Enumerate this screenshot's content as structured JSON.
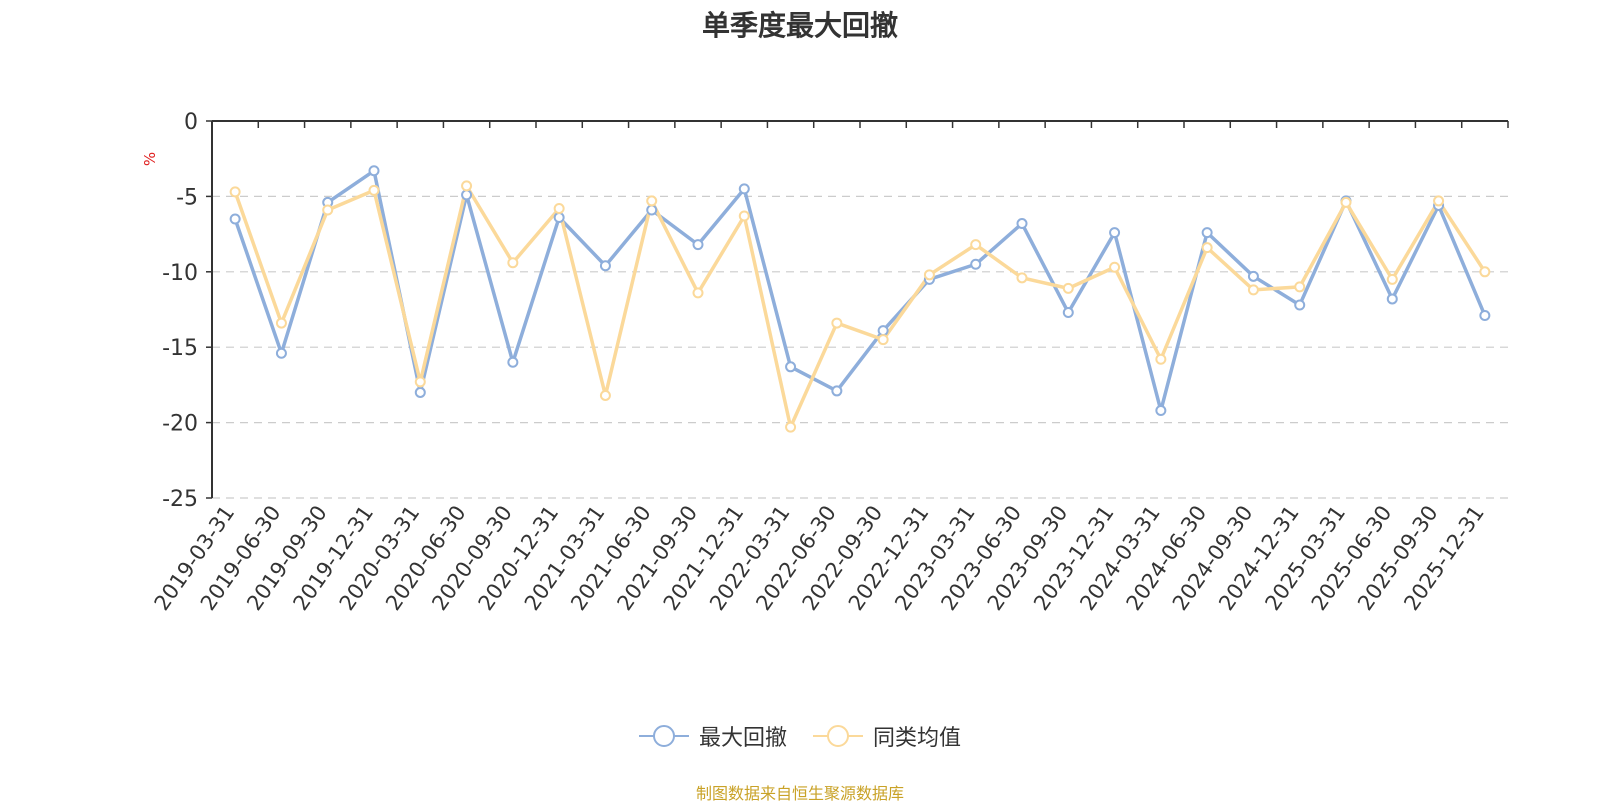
{
  "chart_data": {
    "type": "line",
    "title": "单季度最大回撤",
    "ylabel": "%",
    "ylim": [
      -25,
      0
    ],
    "yticks": [
      0,
      -5,
      -10,
      -15,
      -20,
      -25
    ],
    "grid": true,
    "legend_position": "bottom",
    "categories": [
      "2019-03-31",
      "2019-06-30",
      "2019-09-30",
      "2019-12-31",
      "2020-03-31",
      "2020-06-30",
      "2020-09-30",
      "2020-12-31",
      "2021-03-31",
      "2021-06-30",
      "2021-09-30",
      "2021-12-31",
      "2022-03-31",
      "2022-06-30",
      "2022-09-30",
      "2022-12-31",
      "2023-03-31",
      "2023-06-30",
      "2023-09-30",
      "2023-12-31",
      "2024-03-31",
      "2024-06-30",
      "2024-09-30",
      "2024-12-31",
      "2025-03-31",
      "2025-06-30",
      "2025-09-30",
      "2025-12-31"
    ],
    "series": [
      {
        "name": "最大回撤",
        "color": "#8eaedb",
        "values": [
          -6.5,
          -15.4,
          -5.4,
          -3.3,
          -18.0,
          -4.9,
          -16.0,
          -6.4,
          -9.6,
          -5.9,
          -8.2,
          -4.5,
          -16.3,
          -17.9,
          -13.9,
          -10.5,
          -9.5,
          -6.8,
          -12.7,
          -7.4,
          -19.2,
          -7.4,
          -10.3,
          -12.2,
          -5.3,
          -11.8,
          -5.6,
          -12.9
        ]
      },
      {
        "name": "同类均值",
        "color": "#fbd99a",
        "values": [
          -4.7,
          -13.4,
          -5.9,
          -4.6,
          -17.3,
          -4.3,
          -9.4,
          -5.8,
          -18.2,
          -5.3,
          -11.4,
          -6.3,
          -20.3,
          -13.4,
          -14.5,
          -10.2,
          -8.2,
          -10.4,
          -11.1,
          -9.7,
          -15.8,
          -8.4,
          -11.2,
          -11.0,
          -5.4,
          -10.5,
          -5.3,
          -10.0
        ]
      }
    ]
  },
  "source_note": "制图数据来自恒生聚源数据库"
}
